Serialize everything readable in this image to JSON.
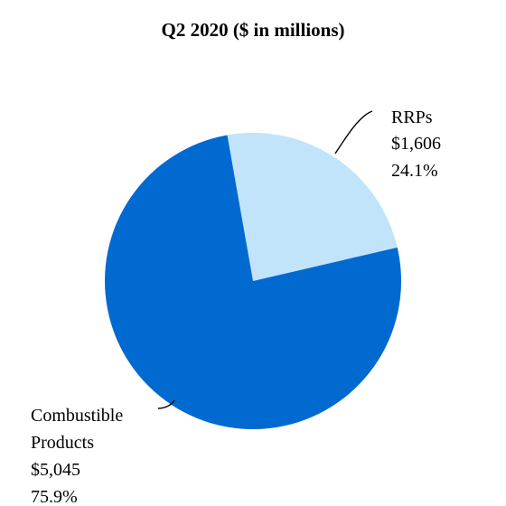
{
  "chart_data": {
    "type": "pie",
    "title": "Q2 2020 ($ in millions)",
    "slices": [
      {
        "label": "RRPs",
        "value": 1606,
        "value_label": "$1,606",
        "percent": 24.1,
        "percent_label": "24.1%",
        "color": "#c2e4fb"
      },
      {
        "label": "Combustible Products",
        "value": 5045,
        "value_label": "$5,045",
        "percent": 75.9,
        "percent_label": "75.9%",
        "color": "#006ad1"
      }
    ]
  }
}
